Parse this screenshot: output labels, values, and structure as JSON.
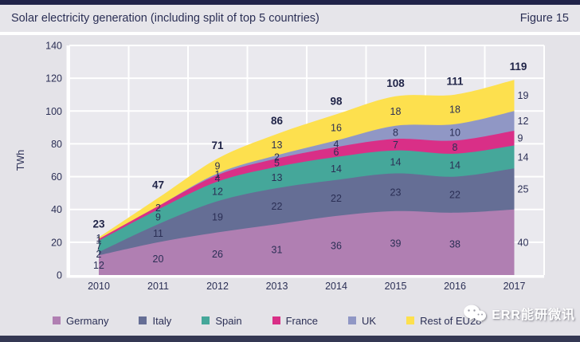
{
  "header": {
    "title": "Solar electricity generation (including split of top 5 countries)",
    "figure_label": "Figure 15"
  },
  "colors": {
    "frame_top": "#202349",
    "frame_bottom": "#343853",
    "text": "#2b2f55",
    "plot_background": "#eae9ee",
    "page_background": "#e4e3e8",
    "gridline": "#ffffff"
  },
  "chart_data": {
    "type": "area",
    "stacked": true,
    "title": "Solar electricity generation (including split of top 5 countries)",
    "xlabel": "",
    "ylabel": "TWh",
    "ylim": [
      0,
      140
    ],
    "yticks": [
      0,
      20,
      40,
      60,
      80,
      100,
      120,
      140
    ],
    "grid": true,
    "legend_position": "bottom",
    "categories": [
      "2010",
      "2011",
      "2012",
      "2013",
      "2014",
      "2015",
      "2016",
      "2017"
    ],
    "series": [
      {
        "name": "Germany",
        "color": "#b07fb2",
        "values": [
          12,
          20,
          26,
          31,
          36,
          39,
          38,
          40
        ],
        "shown_labels": [
          "12",
          "20",
          "26",
          "31",
          "36",
          "39",
          "38",
          "40"
        ]
      },
      {
        "name": "Italy",
        "color": "#656e95",
        "values": [
          2,
          11,
          19,
          22,
          22,
          23,
          22,
          25
        ],
        "shown_labels": [
          "2",
          "11",
          "19",
          "22",
          "22",
          "23",
          "22",
          "25"
        ]
      },
      {
        "name": "Spain",
        "color": "#45a79a",
        "values": [
          7,
          9,
          12,
          13,
          14,
          14,
          14,
          14
        ],
        "shown_labels": [
          "7",
          "9",
          "12",
          "13",
          "14",
          "14",
          "14",
          "14"
        ]
      },
      {
        "name": "France",
        "color": "#d92f87",
        "values": [
          1,
          2,
          4,
          5,
          6,
          7,
          8,
          9
        ],
        "shown_labels": [
          "1",
          "2",
          "4",
          "5",
          "6",
          "7",
          "8",
          "9"
        ]
      },
      {
        "name": "UK",
        "color": "#9097c5",
        "values": [
          0,
          0,
          1,
          2,
          4,
          8,
          10,
          12
        ],
        "shown_labels": [
          null,
          null,
          "1",
          "2",
          "4",
          "8",
          "10",
          "12"
        ]
      },
      {
        "name": "Rest of EU28",
        "color": "#fde04e",
        "values": [
          1,
          5,
          9,
          13,
          16,
          18,
          18,
          19
        ],
        "shown_labels": [
          "1",
          null,
          "9",
          "13",
          "16",
          "18",
          "18",
          "19"
        ]
      }
    ],
    "totals": [
      "23",
      "47",
      "71",
      "86",
      "98",
      "108",
      "111",
      "119"
    ]
  },
  "legend": {
    "items": [
      "Germany",
      "Italy",
      "Spain",
      "France",
      "UK",
      "Rest of EU28"
    ]
  },
  "watermark": {
    "icon": "wechat-icon",
    "text": "ERR能研微讯"
  }
}
